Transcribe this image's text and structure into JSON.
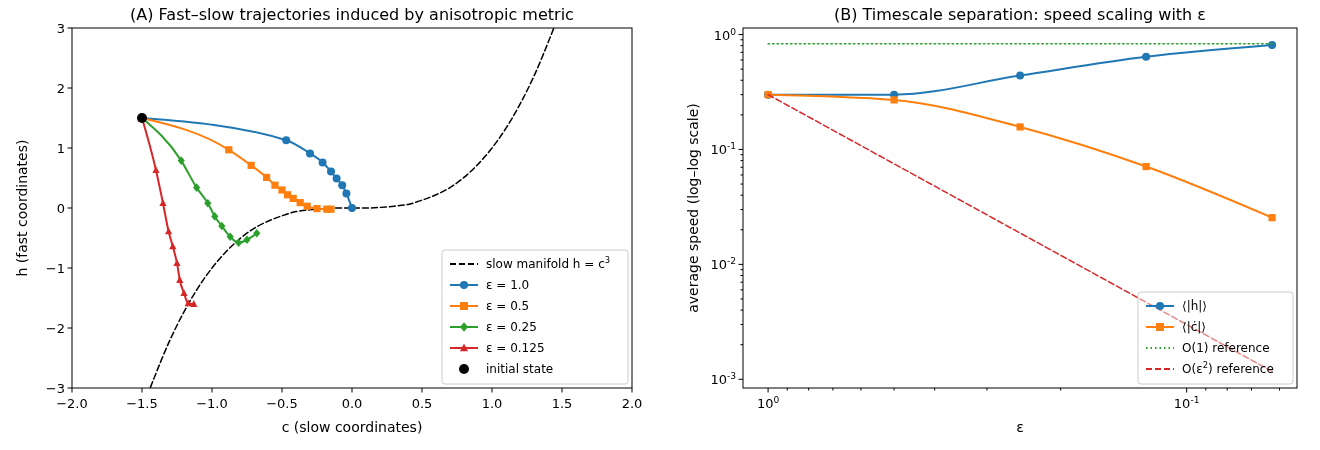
{
  "chart_data": [
    {
      "type": "line",
      "title": "(A) Fast–slow trajectories induced by anisotropic metric",
      "xlabel": "c (slow coordinates)",
      "ylabel": "h (fast coordinates)",
      "xlim": [
        -2,
        2
      ],
      "ylim": [
        -3,
        3
      ],
      "xticks": [
        {
          "value": -2,
          "label": "−2.0"
        },
        {
          "value": -1.5,
          "label": "−1.5"
        },
        {
          "value": -1,
          "label": "−1.0"
        },
        {
          "value": -0.5,
          "label": "−0.5"
        },
        {
          "value": 0,
          "label": "0.0"
        },
        {
          "value": 0.5,
          "label": "0.5"
        },
        {
          "value": 1,
          "label": "1.0"
        },
        {
          "value": 1.5,
          "label": "1.5"
        },
        {
          "value": 2,
          "label": "2.0"
        }
      ],
      "yticks": [
        {
          "value": -3,
          "label": "−3"
        },
        {
          "value": -2,
          "label": "−2"
        },
        {
          "value": -1,
          "label": "−1"
        },
        0,
        1,
        2,
        3
      ],
      "grid": false,
      "legend": "bottom right",
      "series": [
        {
          "name": "slow manifold h = c$^{3}$",
          "color": "#000000",
          "marker": "none",
          "line_style": "dashed",
          "x": [
            -1.44,
            -1.3,
            -1.2,
            -1.1,
            -1.0,
            -0.9,
            -0.8,
            -0.7,
            -0.6,
            -0.5,
            -0.4,
            -0.3,
            -0.2,
            -0.1,
            0,
            0.1,
            0.2,
            0.3,
            0.4,
            0.5,
            0.6,
            0.7,
            0.8,
            0.9,
            1.0,
            1.1,
            1.2,
            1.3,
            1.44
          ],
          "values": [
            -2.99,
            -2.2,
            -1.73,
            -1.33,
            -1.0,
            -0.73,
            -0.51,
            -0.34,
            -0.22,
            -0.13,
            -0.06,
            -0.03,
            -0.01,
            0,
            0,
            0,
            0.01,
            0.03,
            0.06,
            0.13,
            0.22,
            0.34,
            0.51,
            0.73,
            1.0,
            1.33,
            1.73,
            2.2,
            2.99
          ]
        },
        {
          "name": "ε = 1.0",
          "color": "#1f77b4",
          "marker": "circle",
          "line_style": "solid",
          "x": [
            -1.5,
            -0.47,
            -0.3,
            -0.21,
            -0.15,
            -0.11,
            -0.07,
            -0.04,
            0
          ],
          "values": [
            1.5,
            1.13,
            0.91,
            0.76,
            0.61,
            0.49,
            0.38,
            0.24,
            0
          ]
        },
        {
          "name": "ε = 0.5",
          "color": "#ff7f0e",
          "marker": "square",
          "line_style": "solid",
          "x": [
            -1.5,
            -0.88,
            -0.72,
            -0.61,
            -0.55,
            -0.5,
            -0.46,
            -0.42,
            -0.37,
            -0.32,
            -0.25,
            -0.18,
            -0.15
          ],
          "values": [
            1.5,
            0.97,
            0.71,
            0.51,
            0.38,
            0.3,
            0.22,
            0.16,
            0.09,
            0.03,
            -0.01,
            -0.02,
            -0.02
          ]
        },
        {
          "name": "ε = 0.25",
          "color": "#2ca02c",
          "marker": "diamond",
          "line_style": "solid",
          "x": [
            -1.5,
            -1.22,
            -1.11,
            -1.03,
            -0.98,
            -0.93,
            -0.87,
            -0.81,
            -0.75,
            -0.68
          ],
          "values": [
            1.5,
            0.79,
            0.34,
            0.08,
            -0.14,
            -0.3,
            -0.48,
            -0.58,
            -0.53,
            -0.42
          ]
        },
        {
          "name": "ε = 0.125",
          "color": "#d62728",
          "marker": "triangle",
          "line_style": "solid",
          "x": [
            -1.5,
            -1.4,
            -1.35,
            -1.31,
            -1.28,
            -1.25,
            -1.23,
            -1.2,
            -1.17,
            -1.13
          ],
          "values": [
            1.5,
            0.63,
            0.08,
            -0.39,
            -0.64,
            -0.92,
            -1.2,
            -1.42,
            -1.59,
            -1.6
          ]
        },
        {
          "name": "initial state",
          "type": "scatter",
          "color": "#000000",
          "marker": "circle",
          "x": [
            -1.5
          ],
          "values": [
            1.5
          ]
        }
      ]
    },
    {
      "type": "line",
      "title": "(B) Timescale separation: speed scaling with ε",
      "xlabel": "ε",
      "ylabel": "average speed (log–log scale)",
      "log": "xy",
      "xlim": [
        1.148,
        0.0545
      ],
      "ylim": [
        0.00084,
        1.14
      ],
      "xticks": [
        {
          "value": 1,
          "label": "10$^{0}$"
        },
        {
          "value": 0.1,
          "label": "10$^{-1}$"
        },
        {
          "value": 0.9,
          "label": null
        },
        {
          "value": 0.8,
          "label": null
        },
        {
          "value": 0.7,
          "label": null
        },
        {
          "value": 0.6,
          "label": null
        },
        {
          "value": 0.5,
          "label": null
        },
        {
          "value": 0.4,
          "label": null
        },
        {
          "value": 0.3,
          "label": null
        },
        {
          "value": 0.2,
          "label": null
        },
        {
          "value": 0.09,
          "label": null
        },
        {
          "value": 0.08,
          "label": null
        },
        {
          "value": 0.07,
          "label": null
        },
        {
          "value": 0.06,
          "label": null
        }
      ],
      "yticks": [
        {
          "value": 1,
          "label": "10$^{0}$"
        },
        {
          "value": 0.1,
          "label": "10$^{-1}$"
        },
        {
          "value": 0.01,
          "label": "10$^{-2}$"
        },
        {
          "value": 0.001,
          "label": "10$^{-3}$"
        },
        {
          "value": 0.9,
          "label": null
        },
        {
          "value": 0.8,
          "label": null
        },
        {
          "value": 0.7,
          "label": null
        },
        {
          "value": 0.6,
          "label": null
        },
        {
          "value": 0.5,
          "label": null
        },
        {
          "value": 0.4,
          "label": null
        },
        {
          "value": 0.3,
          "label": null
        },
        {
          "value": 0.2,
          "label": null
        },
        {
          "value": 0.09,
          "label": null
        },
        {
          "value": 0.08,
          "label": null
        },
        {
          "value": 0.07,
          "label": null
        },
        {
          "value": 0.06,
          "label": null
        },
        {
          "value": 0.05,
          "label": null
        },
        {
          "value": 0.04,
          "label": null
        },
        {
          "value": 0.03,
          "label": null
        },
        {
          "value": 0.02,
          "label": null
        },
        {
          "value": 0.009,
          "label": null
        },
        {
          "value": 0.008,
          "label": null
        },
        {
          "value": 0.007,
          "label": null
        },
        {
          "value": 0.006,
          "label": null
        },
        {
          "value": 0.005,
          "label": null
        },
        {
          "value": 0.004,
          "label": null
        },
        {
          "value": 0.003,
          "label": null
        },
        {
          "value": 0.002,
          "label": null
        }
      ],
      "grid": false,
      "legend": "bottom right",
      "series": [
        {
          "name": "⟨|ḣ|⟩",
          "color": "#1f77b4",
          "marker": "circle",
          "line_style": "solid",
          "x": [
            1,
            0.5,
            0.25,
            0.125,
            0.0625
          ],
          "values": [
            0.3,
            0.3,
            0.44,
            0.64,
            0.81
          ]
        },
        {
          "name": "⟨|ċ|⟩",
          "color": "#ff7f0e",
          "marker": "square",
          "line_style": "solid",
          "x": [
            1,
            0.5,
            0.25,
            0.125,
            0.0625
          ],
          "values": [
            0.3,
            0.27,
            0.157,
            0.071,
            0.0255
          ]
        },
        {
          "name": "O(1) reference",
          "color": "#2ca02c",
          "marker": "none",
          "line_style": "dotted",
          "x": [
            1,
            0.0625
          ],
          "values": [
            0.83,
            0.83
          ]
        },
        {
          "name": "O(ε$^{2}$) reference",
          "color": "#d62728",
          "marker": "none",
          "line_style": "dashed",
          "x": [
            1,
            0.0625
          ],
          "values": [
            0.3,
            0.00117
          ]
        }
      ]
    }
  ]
}
